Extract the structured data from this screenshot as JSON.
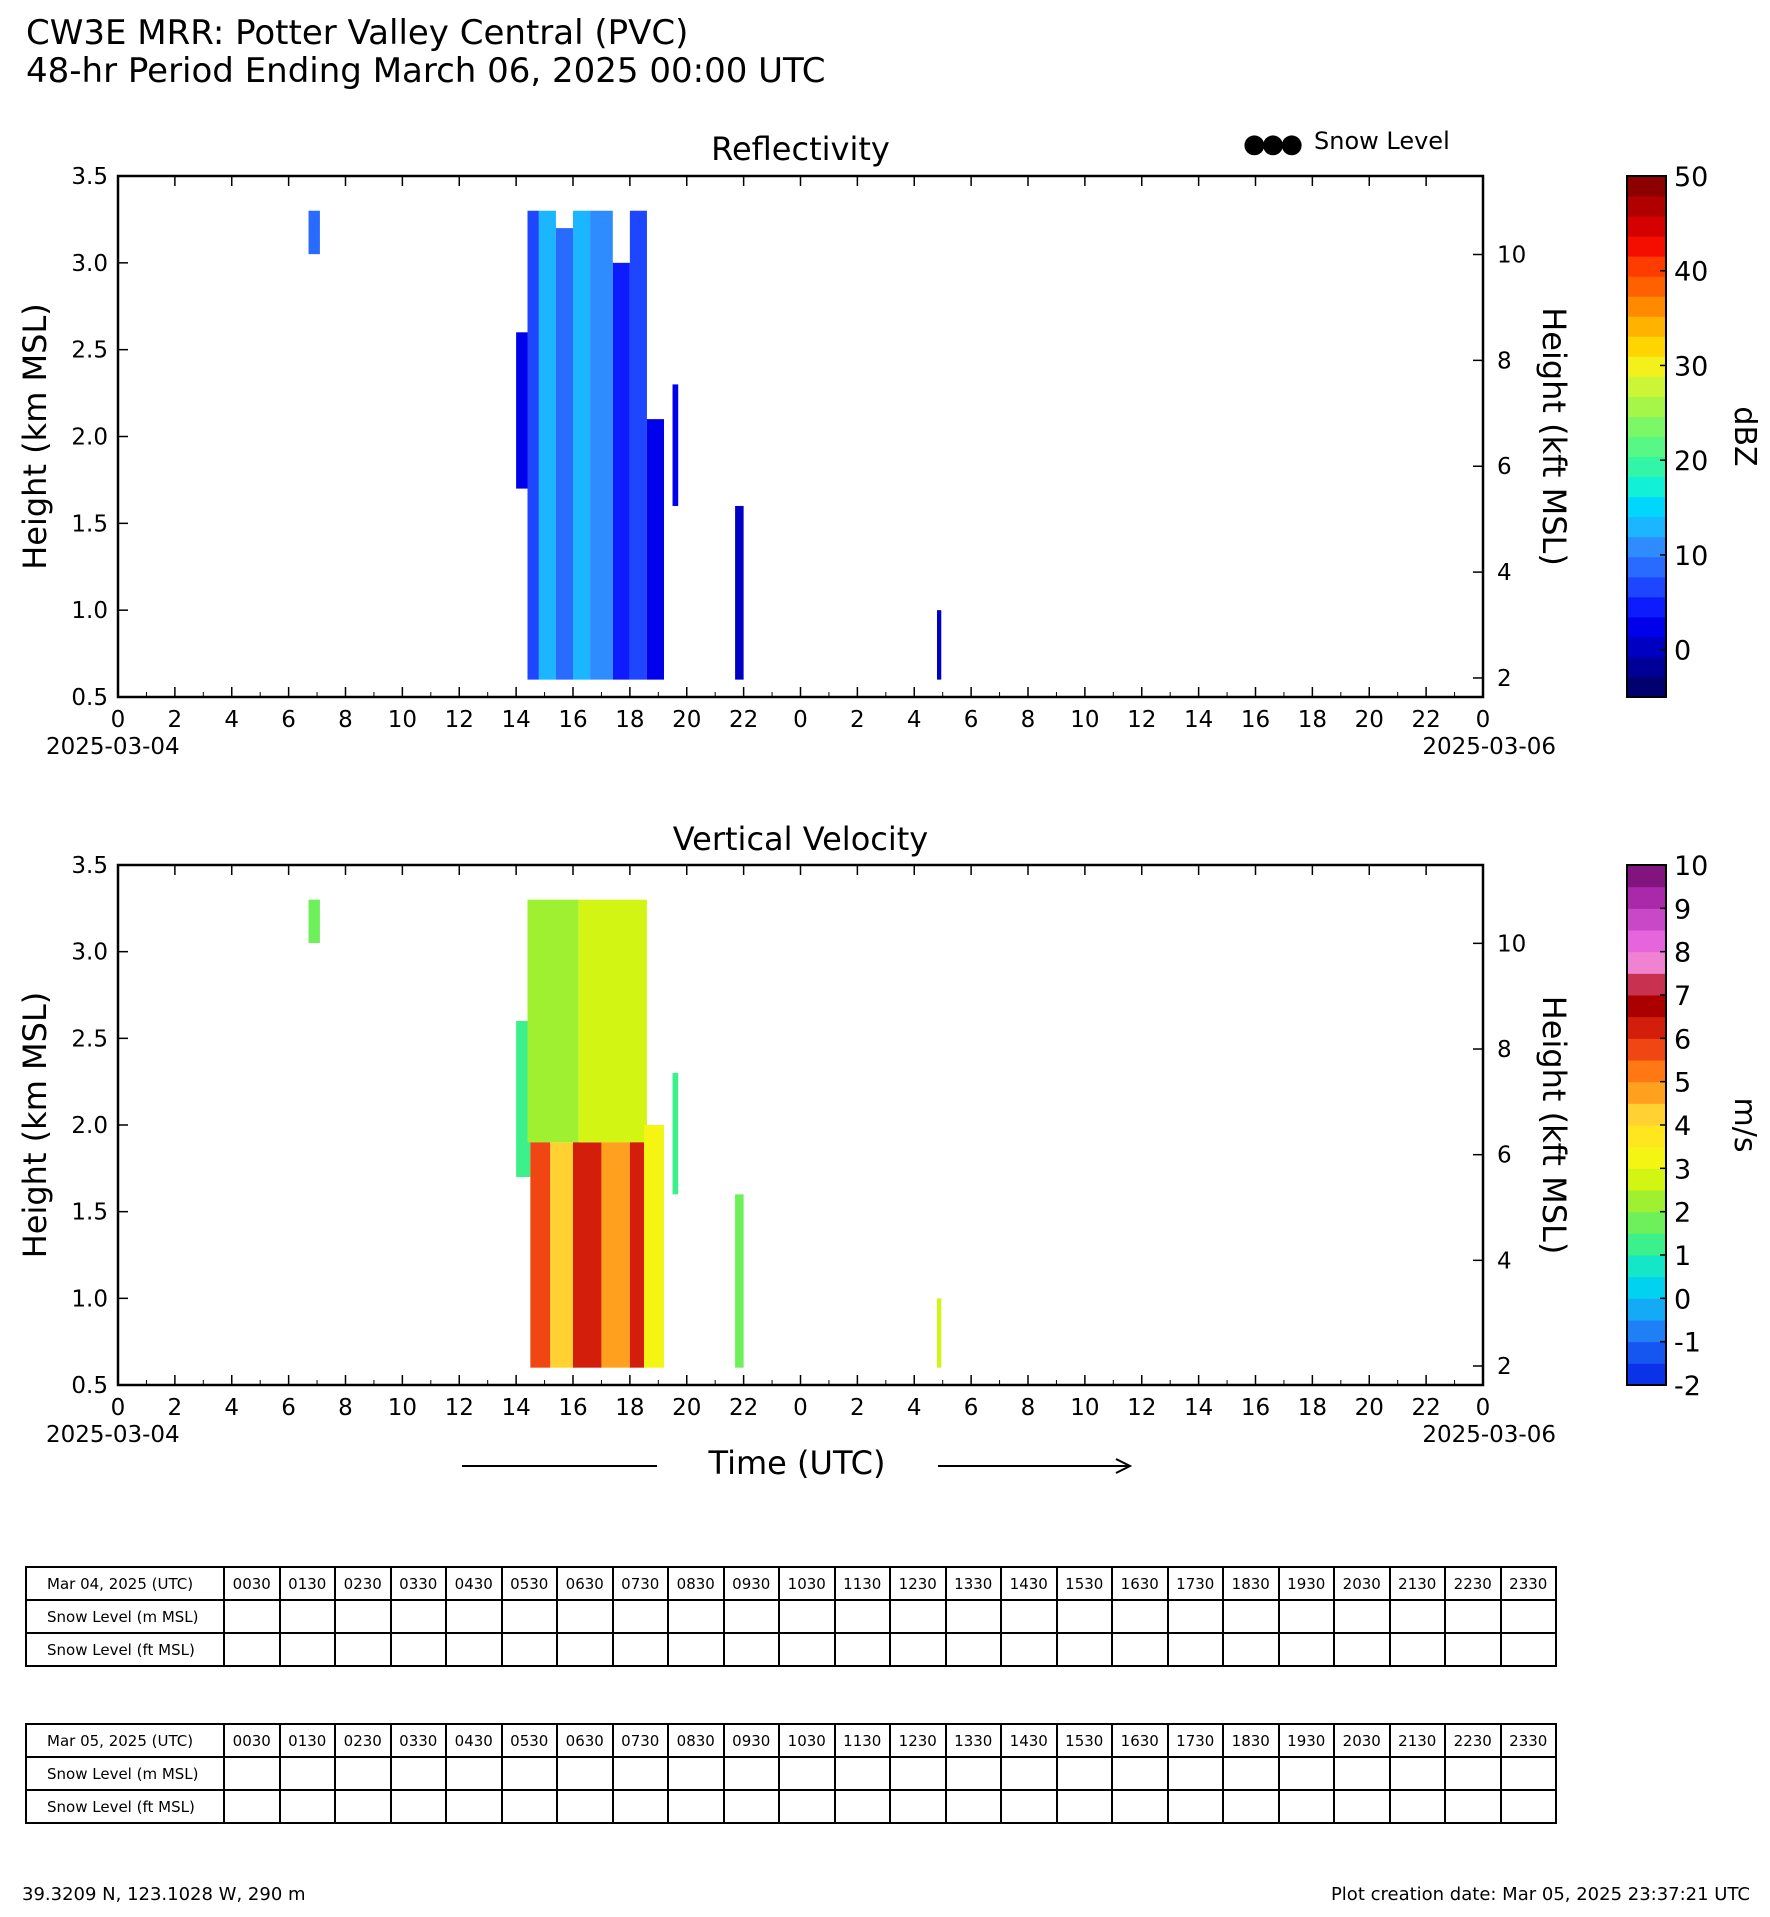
{
  "header": {
    "title_line1": "CW3E MRR: Potter Valley Central (PVC)",
    "title_line2": "48-hr Period Ending March 06, 2025 00:00 UTC"
  },
  "legend": {
    "marker": "●●●",
    "label": "Snow Level"
  },
  "axis_common": {
    "x_ticks": [
      "0",
      "2",
      "4",
      "6",
      "8",
      "10",
      "12",
      "14",
      "16",
      "18",
      "20",
      "22",
      "0",
      "2",
      "4",
      "6",
      "8",
      "10",
      "12",
      "14",
      "16",
      "18",
      "20",
      "22",
      "0"
    ],
    "start_date": "2025-03-04",
    "end_date": "2025-03-06",
    "y_ticks": [
      "0.5",
      "1.0",
      "1.5",
      "2.0",
      "2.5",
      "3.0",
      "3.5"
    ],
    "y2_ticks": [
      "2",
      "4",
      "6",
      "8",
      "10"
    ],
    "ylabel": "Height (km MSL)",
    "y2label": "Height (kft MSL)",
    "xlabel": "Time (UTC)"
  },
  "chart_data": [
    {
      "type": "heatmap",
      "title": "Reflectivity",
      "ylabel": "Height (km MSL)",
      "y2label": "Height (kft MSL)",
      "xlim": [
        0,
        48
      ],
      "ylim": [
        0.5,
        3.5
      ],
      "colorbar": {
        "label": "dBZ",
        "range": [
          -5,
          50
        ],
        "ticks": [
          "50",
          "40",
          "30",
          "20",
          "10",
          "0"
        ],
        "colors": [
          "#00006e",
          "#000096",
          "#0000c3",
          "#0000ea",
          "#0d1cff",
          "#1e46ff",
          "#2a6bff",
          "#2f8cff",
          "#1bb6ff",
          "#00d7ff",
          "#12f0d7",
          "#33f5a8",
          "#57f886",
          "#7cf866",
          "#a6f64a",
          "#cdf538",
          "#f3f01c",
          "#ffd500",
          "#ffb300",
          "#ff8a00",
          "#ff6000",
          "#ff3c00",
          "#f50d00",
          "#d50000",
          "#b00000",
          "#8c0000"
        ]
      },
      "cells": [
        {
          "t0": 6.7,
          "t1": 7.1,
          "h0": 3.05,
          "h1": 3.3,
          "v": 8
        },
        {
          "t0": 14.0,
          "t1": 14.5,
          "h0": 1.7,
          "h1": 2.6,
          "v": 3
        },
        {
          "t0": 14.4,
          "t1": 14.8,
          "h0": 0.6,
          "h1": 3.3,
          "v": 6
        },
        {
          "t0": 14.8,
          "t1": 15.4,
          "h0": 0.6,
          "h1": 3.3,
          "v": 12
        },
        {
          "t0": 15.4,
          "t1": 16.0,
          "h0": 0.6,
          "h1": 3.2,
          "v": 8
        },
        {
          "t0": 16.0,
          "t1": 16.6,
          "h0": 0.6,
          "h1": 3.3,
          "v": 14
        },
        {
          "t0": 16.6,
          "t1": 17.4,
          "h0": 0.6,
          "h1": 3.3,
          "v": 10
        },
        {
          "t0": 17.4,
          "t1": 18.0,
          "h0": 0.6,
          "h1": 3.0,
          "v": 5
        },
        {
          "t0": 18.0,
          "t1": 18.6,
          "h0": 0.6,
          "h1": 3.3,
          "v": 7
        },
        {
          "t0": 18.6,
          "t1": 19.2,
          "h0": 0.6,
          "h1": 2.1,
          "v": 3
        },
        {
          "t0": 19.5,
          "t1": 19.7,
          "h0": 1.6,
          "h1": 2.3,
          "v": 2
        },
        {
          "t0": 21.7,
          "t1": 22.0,
          "h0": 0.6,
          "h1": 1.6,
          "v": 1
        },
        {
          "t0": 28.8,
          "t1": 28.95,
          "h0": 0.6,
          "h1": 1.0,
          "v": 1
        }
      ]
    },
    {
      "type": "heatmap",
      "title": "Vertical Velocity",
      "ylabel": "Height (km MSL)",
      "y2label": "Height (kft MSL)",
      "xlabel": "Time (UTC)",
      "xlim": [
        0,
        48
      ],
      "ylim": [
        0.5,
        3.5
      ],
      "colorbar": {
        "label": "m/s",
        "range": [
          -2,
          10
        ],
        "ticks": [
          "10",
          "9",
          "8",
          "7",
          "6",
          "5",
          "4",
          "3",
          "2",
          "1",
          "0",
          "-1",
          "-2"
        ],
        "colors": [
          "#0a32e6",
          "#1555f0",
          "#1f80f5",
          "#14aaf5",
          "#00d2f0",
          "#14e6c8",
          "#3cf08c",
          "#6ef05a",
          "#a0f032",
          "#d2f514",
          "#f5f514",
          "#ffe61e",
          "#ffd232",
          "#ffa01e",
          "#ff7814",
          "#f04614",
          "#d21e0a",
          "#aa0000",
          "#c83250",
          "#f082d2",
          "#e664dc",
          "#c848c8",
          "#aa28aa",
          "#82147d"
        ]
      },
      "cells": [
        {
          "t0": 6.7,
          "t1": 7.1,
          "h0": 3.05,
          "h1": 3.3,
          "v": 1.5
        },
        {
          "t0": 14.0,
          "t1": 14.5,
          "h0": 1.7,
          "h1": 2.6,
          "v": 1.2
        },
        {
          "t0": 14.4,
          "t1": 16.2,
          "h0": 1.9,
          "h1": 3.3,
          "v": 2.2
        },
        {
          "t0": 14.5,
          "t1": 15.2,
          "h0": 0.6,
          "h1": 1.9,
          "v": 5.5
        },
        {
          "t0": 15.2,
          "t1": 16.0,
          "h0": 0.6,
          "h1": 1.9,
          "v": 4.0
        },
        {
          "t0": 16.0,
          "t1": 17.0,
          "h0": 0.6,
          "h1": 1.9,
          "v": 6.0
        },
        {
          "t0": 16.2,
          "t1": 18.6,
          "h0": 1.9,
          "h1": 3.3,
          "v": 2.6
        },
        {
          "t0": 17.0,
          "t1": 18.0,
          "h0": 0.6,
          "h1": 1.9,
          "v": 4.5
        },
        {
          "t0": 18.0,
          "t1": 18.5,
          "h0": 0.6,
          "h1": 1.9,
          "v": 6.0
        },
        {
          "t0": 18.5,
          "t1": 19.2,
          "h0": 0.6,
          "h1": 2.0,
          "v": 3.0
        },
        {
          "t0": 19.5,
          "t1": 19.7,
          "h0": 1.6,
          "h1": 2.3,
          "v": 1.0
        },
        {
          "t0": 21.7,
          "t1": 22.0,
          "h0": 0.6,
          "h1": 1.6,
          "v": 1.8
        },
        {
          "t0": 28.8,
          "t1": 28.95,
          "h0": 0.6,
          "h1": 1.0,
          "v": 2.5
        }
      ]
    }
  ],
  "tables": [
    {
      "date_label": "Mar 04, 2025 (UTC)",
      "row_m_label": "Snow Level (m MSL)",
      "row_ft_label": "Snow Level (ft MSL)",
      "times": [
        "0030",
        "0130",
        "0230",
        "0330",
        "0430",
        "0530",
        "0630",
        "0730",
        "0830",
        "0930",
        "1030",
        "1130",
        "1230",
        "1330",
        "1430",
        "1530",
        "1630",
        "1730",
        "1830",
        "1930",
        "2030",
        "2130",
        "2230",
        "2330"
      ]
    },
    {
      "date_label": "Mar 05, 2025 (UTC)",
      "row_m_label": "Snow Level (m MSL)",
      "row_ft_label": "Snow Level (ft MSL)",
      "times": [
        "0030",
        "0130",
        "0230",
        "0330",
        "0430",
        "0530",
        "0630",
        "0730",
        "0830",
        "0930",
        "1030",
        "1130",
        "1230",
        "1330",
        "1430",
        "1530",
        "1630",
        "1730",
        "1830",
        "1930",
        "2030",
        "2130",
        "2230",
        "2330"
      ]
    }
  ],
  "footer": {
    "location": "39.3209 N, 123.1028 W, 290 m",
    "creation": "Plot creation date: Mar 05, 2025 23:37:21 UTC"
  }
}
